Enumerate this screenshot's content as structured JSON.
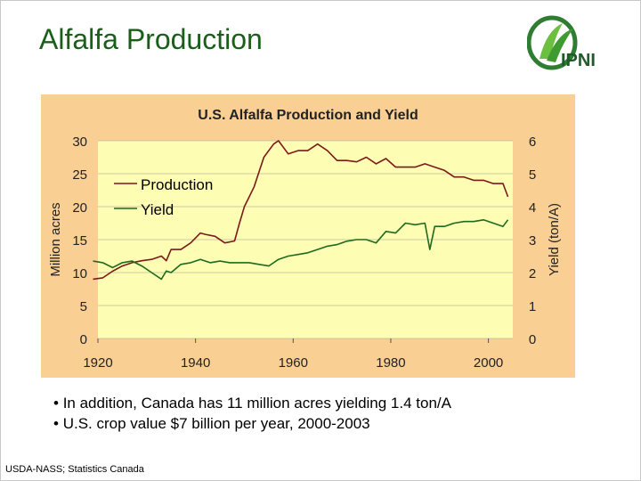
{
  "slide": {
    "title": "Alfalfa Production",
    "logo_text": "IPNI",
    "bullets": [
      "In addition, Canada has 11 million acres yielding 1.4 ton/A",
      "U.S. crop value $7 billion per year, 2000-2003"
    ],
    "bullet_glyph": "•",
    "source": "USDA-NASS; Statistics Canada"
  },
  "colors": {
    "chart_background": "#f9cf94",
    "plot_background": "#fdfdb3",
    "production": "#7a1a1a",
    "yield": "#1f6a1f",
    "title_green": "#1a5e1a"
  },
  "chart_data": {
    "type": "line",
    "title": "U.S. Alfalfa Production and Yield",
    "xlabel": "",
    "ylabel_left": "Million acres",
    "ylabel_right": "Yield (ton/A)",
    "xlim": [
      1920,
      2005
    ],
    "x_ticks": [
      1920,
      1940,
      1960,
      1980,
      2000
    ],
    "ylim_left": [
      0,
      30
    ],
    "y_ticks_left": [
      0,
      5,
      10,
      15,
      20,
      25,
      30
    ],
    "ylim_right": [
      0,
      6
    ],
    "y_ticks_right": [
      0,
      1,
      2,
      3,
      4,
      5,
      6
    ],
    "legend_position": "upper-left",
    "series": [
      {
        "name": "Production",
        "axis": "left",
        "x": [
          1919,
          1921,
          1923,
          1925,
          1927,
          1929,
          1931,
          1933,
          1934,
          1935,
          1937,
          1939,
          1941,
          1942,
          1944,
          1946,
          1948,
          1949,
          1950,
          1952,
          1954,
          1956,
          1957,
          1959,
          1961,
          1963,
          1965,
          1967,
          1969,
          1971,
          1973,
          1975,
          1977,
          1979,
          1981,
          1983,
          1985,
          1987,
          1989,
          1991,
          1993,
          1995,
          1997,
          1999,
          2001,
          2003,
          2004
        ],
        "values": [
          9.0,
          9.2,
          10.2,
          11.0,
          11.5,
          11.8,
          12.0,
          12.5,
          11.8,
          13.5,
          13.5,
          14.5,
          16.0,
          15.8,
          15.5,
          14.5,
          14.8,
          17.5,
          20.0,
          23.0,
          27.5,
          29.5,
          30.0,
          28.0,
          28.5,
          28.5,
          29.5,
          28.5,
          27.0,
          27.0,
          26.8,
          27.5,
          26.5,
          27.3,
          26.0,
          26.0,
          26.0,
          26.5,
          26.0,
          25.5,
          24.5,
          24.5,
          24.0,
          24.0,
          23.5,
          23.5,
          21.5
        ]
      },
      {
        "name": "Yield",
        "axis": "right",
        "x": [
          1919,
          1921,
          1923,
          1925,
          1927,
          1929,
          1931,
          1933,
          1934,
          1935,
          1937,
          1939,
          1941,
          1943,
          1945,
          1947,
          1949,
          1951,
          1953,
          1955,
          1957,
          1959,
          1961,
          1963,
          1965,
          1967,
          1969,
          1971,
          1973,
          1975,
          1977,
          1979,
          1981,
          1983,
          1985,
          1987,
          1988,
          1989,
          1991,
          1993,
          1995,
          1997,
          1999,
          2001,
          2003,
          2004
        ],
        "values": [
          2.35,
          2.3,
          2.15,
          2.3,
          2.35,
          2.2,
          2.0,
          1.8,
          2.05,
          2.0,
          2.25,
          2.3,
          2.4,
          2.3,
          2.35,
          2.3,
          2.3,
          2.3,
          2.25,
          2.2,
          2.4,
          2.5,
          2.55,
          2.6,
          2.7,
          2.8,
          2.85,
          2.95,
          3.0,
          3.0,
          2.9,
          3.25,
          3.2,
          3.5,
          3.45,
          3.5,
          2.7,
          3.4,
          3.4,
          3.5,
          3.55,
          3.55,
          3.6,
          3.5,
          3.4,
          3.6
        ]
      }
    ]
  }
}
